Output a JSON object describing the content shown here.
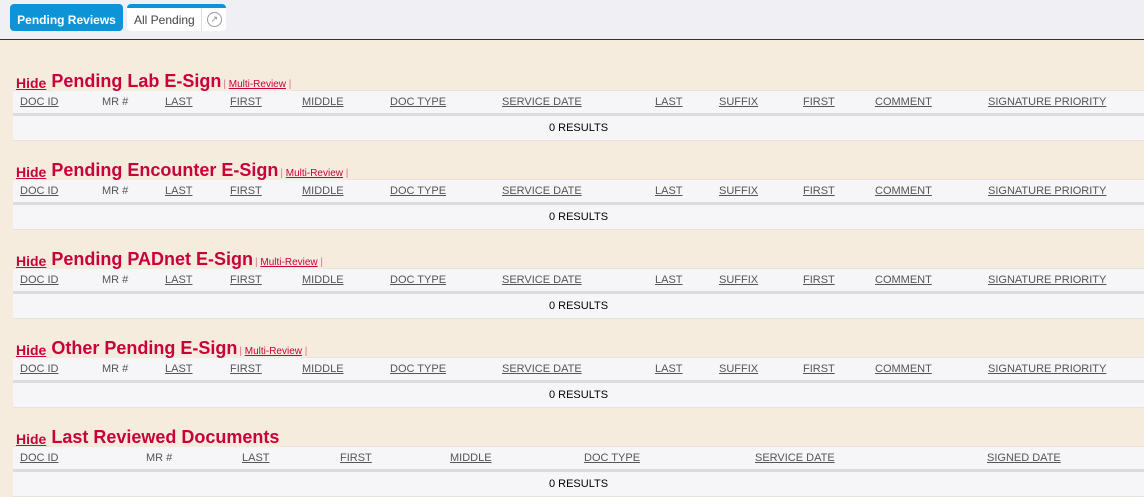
{
  "tabs": {
    "pending_reviews": "Pending Reviews",
    "all_pending": "All Pending"
  },
  "hide_label": "Hide",
  "multi_review_label": "Multi-Review",
  "esign_columns": [
    "DOC ID",
    "MR #",
    "LAST",
    "FIRST",
    "MIDDLE",
    "DOC TYPE",
    "SERVICE DATE",
    "LAST",
    "SUFFIX",
    "FIRST",
    "COMMENT",
    "SIGNATURE PRIORITY"
  ],
  "last_reviewed_columns": [
    "DOC ID",
    "MR #",
    "LAST",
    "FIRST",
    "MIDDLE",
    "DOC TYPE",
    "SERVICE DATE",
    "SIGNED DATE"
  ],
  "sections": [
    {
      "title": "Pending Lab E-Sign",
      "multi_review": true,
      "results": "0 RESULTS"
    },
    {
      "title": "Pending Encounter E-Sign",
      "multi_review": true,
      "results": "0 RESULTS"
    },
    {
      "title": "Pending PADnet E-Sign",
      "multi_review": true,
      "results": "0 RESULTS"
    },
    {
      "title": "Other Pending E-Sign",
      "multi_review": true,
      "results": "0 RESULTS"
    },
    {
      "title": "Last Reviewed Documents",
      "multi_review": false,
      "results": "0 RESULTS"
    }
  ]
}
